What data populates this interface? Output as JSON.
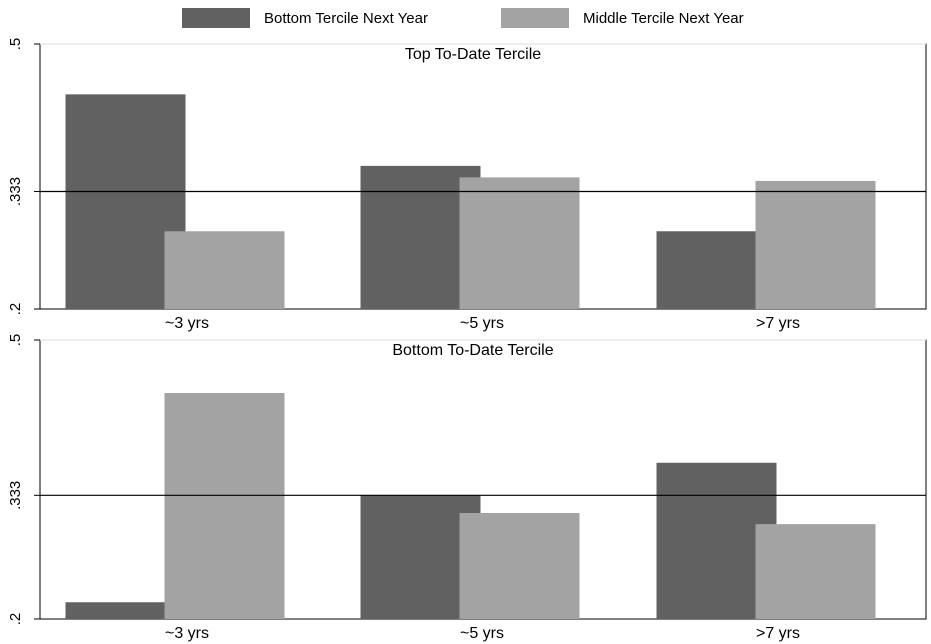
{
  "colors": {
    "bottom": "#616161",
    "middle": "#a3a3a3",
    "refline": "#000000",
    "grid": "#dedede"
  },
  "legend": [
    {
      "label": "Bottom Tercile Next Year",
      "color": "#616161"
    },
    {
      "label": "Middle Tercile Next Year",
      "color": "#a3a3a3"
    }
  ],
  "chart_data": [
    {
      "type": "bar",
      "title": "Top To-Date Tercile",
      "categories": [
        "~3 yrs",
        "~5 yrs",
        ">7 yrs"
      ],
      "series": [
        {
          "name": "Bottom Tercile Next Year",
          "values": [
            0.443,
            0.362,
            0.288
          ]
        },
        {
          "name": "Middle Tercile Next Year",
          "values": [
            0.288,
            0.349,
            0.345
          ]
        }
      ],
      "ylim": [
        0.2,
        0.5
      ],
      "yticks": [
        ".2",
        ".333",
        ".5"
      ],
      "ytick_values": [
        0.2,
        0.333,
        0.5
      ],
      "reference_line": 0.333,
      "grid": true
    },
    {
      "type": "bar",
      "title": "Bottom To-Date Tercile",
      "categories": [
        "~3 yrs",
        "~5 yrs",
        ">7 yrs"
      ],
      "series": [
        {
          "name": "Bottom Tercile Next Year",
          "values": [
            0.218,
            0.333,
            0.368
          ]
        },
        {
          "name": "Middle Tercile Next Year",
          "values": [
            0.443,
            0.314,
            0.302
          ]
        }
      ],
      "ylim": [
        0.2,
        0.5
      ],
      "yticks": [
        ".2",
        ".333",
        ".5"
      ],
      "ytick_values": [
        0.2,
        0.333,
        0.5
      ],
      "reference_line": 0.333,
      "grid": true
    }
  ]
}
